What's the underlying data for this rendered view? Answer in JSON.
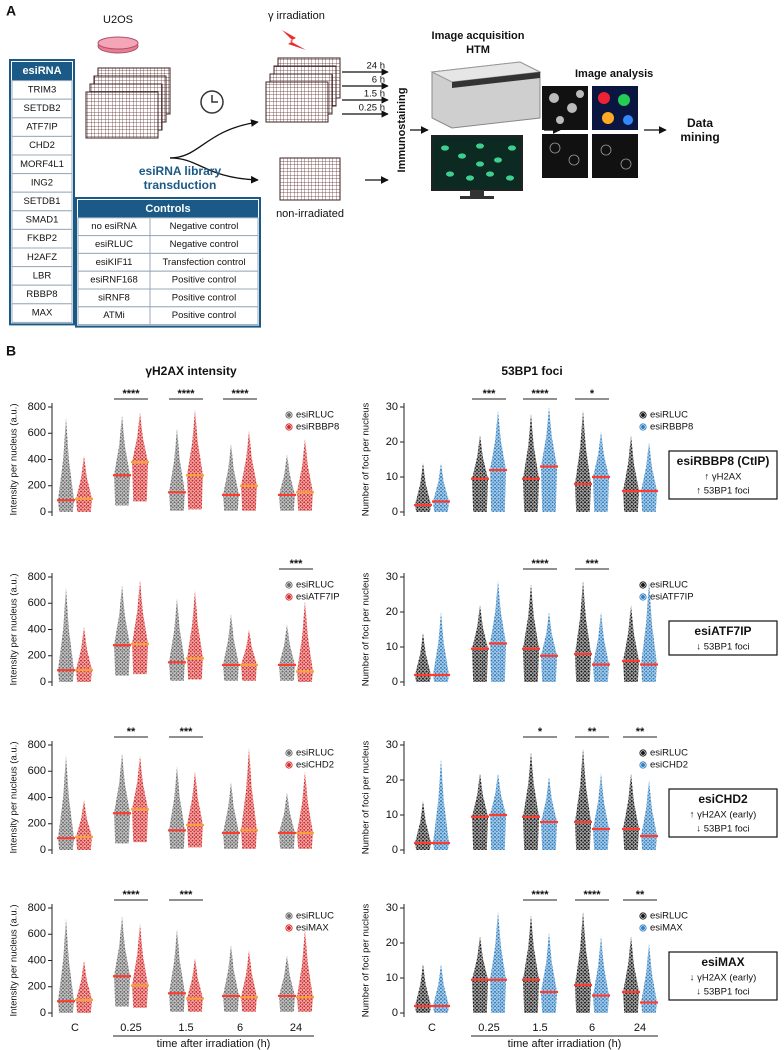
{
  "panel_a": {
    "label": "A",
    "cell_line": "U2OS",
    "esirna_table": {
      "header": "esiRNA",
      "rows": [
        "TRIM3",
        "SETDB2",
        "ATF7IP",
        "CHD2",
        "MORF4L1",
        "ING2",
        "SETDB1",
        "SMAD1",
        "FKBP2",
        "H2AFZ",
        "LBR",
        "RBBP8",
        "MAX"
      ]
    },
    "transduction": [
      "esiRNA library",
      "transduction"
    ],
    "controls_table": {
      "header": "Controls",
      "rows": [
        [
          "no esiRNA",
          "Negative control"
        ],
        [
          "esiRLUC",
          "Negative control"
        ],
        [
          "esiKIF11",
          "Transfection control"
        ],
        [
          "esiRNF168",
          "Positive control"
        ],
        [
          "siRNF8",
          "Positive control"
        ],
        [
          "ATMi",
          "Positive control"
        ]
      ]
    },
    "irradiation": "γ irradiation",
    "time_points": [
      "24 h",
      "6 h",
      "1.5 h",
      "0.25 h"
    ],
    "non_irradiated": "non-irradiated",
    "immunostaining": "Immunostaining",
    "image_acquisition": [
      "Image acquisition",
      "HTM"
    ],
    "image_analysis": "Image analysis",
    "data_mining": [
      "Data",
      "mining"
    ]
  },
  "panel_b": {
    "label": "B"
  },
  "summary_boxes": [
    {
      "title": "esiRBBP8 (CtIP)",
      "lines": [
        "↑ γH2AX",
        "↑ 53BP1 foci"
      ]
    },
    {
      "title": "esiATF7IP",
      "lines": [
        "↓ 53BP1 foci"
      ]
    },
    {
      "title": "esiCHD2",
      "lines": [
        "↑ γH2AX (early)",
        "↓ 53BP1 foci"
      ]
    },
    {
      "title": "esiMAX",
      "lines": [
        "↓ γH2AX (early)",
        "↓ 53BP1 foci"
      ]
    }
  ],
  "chart_data": [
    {
      "type": "swarm",
      "title": "γH2AX intensity",
      "y_label": "Intensity per nucleus (a.u.)",
      "ylim": [
        0,
        800
      ],
      "yticks": [
        0,
        200,
        400,
        600,
        800
      ],
      "categories": [
        null,
        null,
        null,
        null,
        null
      ],
      "significance": [
        null,
        "****",
        "****",
        "****",
        null
      ],
      "series": [
        {
          "name": "esiRLUC",
          "color": "#6a6a6a",
          "median_color": "#ff3b2f",
          "median": [
            90,
            280,
            150,
            130,
            130
          ],
          "min": [
            0,
            50,
            10,
            10,
            10
          ],
          "max": [
            720,
            740,
            640,
            520,
            440
          ]
        },
        {
          "name": "esiRBBP8",
          "color": "#d42a2a",
          "median_color": "#f7a13a",
          "median": [
            100,
            380,
            280,
            200,
            150
          ],
          "min": [
            0,
            80,
            20,
            10,
            10
          ],
          "max": [
            430,
            760,
            780,
            620,
            560
          ]
        }
      ]
    },
    {
      "type": "swarm",
      "title": "53BP1 foci",
      "y_label": "Number of foci per nucleus",
      "ylim": [
        0,
        30
      ],
      "yticks": [
        0,
        10,
        20,
        30
      ],
      "categories": [
        null,
        null,
        null,
        null,
        null
      ],
      "significance": [
        null,
        "***",
        "****",
        "*",
        null
      ],
      "series": [
        {
          "name": "esiRLUC",
          "color": "#1a1a1a",
          "median_color": "#ff3b2f",
          "median": [
            2,
            9.5,
            9.5,
            8,
            6
          ],
          "min": [
            0,
            0,
            0,
            0,
            0
          ],
          "max": [
            14,
            22,
            28,
            29,
            22
          ]
        },
        {
          "name": "esiRBBP8",
          "color": "#2f7fc1",
          "median_color": "#ff3b2f",
          "median": [
            3,
            12,
            13,
            10,
            6
          ],
          "min": [
            0,
            0,
            0,
            0,
            0
          ],
          "max": [
            14,
            29,
            30,
            23,
            20
          ]
        }
      ]
    },
    {
      "type": "swarm",
      "y_label": "Intensity per nucleus (a.u.)",
      "ylim": [
        0,
        800
      ],
      "yticks": [
        0,
        200,
        400,
        600,
        800
      ],
      "categories": [
        null,
        null,
        null,
        null,
        null
      ],
      "significance": [
        null,
        null,
        null,
        null,
        "***"
      ],
      "series": [
        {
          "name": "esiRLUC",
          "color": "#6a6a6a",
          "median_color": "#ff3b2f",
          "median": [
            90,
            280,
            150,
            130,
            130
          ],
          "min": [
            0,
            50,
            10,
            10,
            10
          ],
          "max": [
            720,
            740,
            640,
            520,
            440
          ]
        },
        {
          "name": "esiATF7IP",
          "color": "#d42a2a",
          "median_color": "#f7a13a",
          "median": [
            90,
            290,
            180,
            130,
            80
          ],
          "min": [
            0,
            60,
            20,
            10,
            0
          ],
          "max": [
            420,
            780,
            700,
            400,
            620
          ]
        }
      ]
    },
    {
      "type": "swarm",
      "y_label": "Number of foci per nucleus",
      "ylim": [
        0,
        30
      ],
      "yticks": [
        0,
        10,
        20,
        30
      ],
      "categories": [
        null,
        null,
        null,
        null,
        null
      ],
      "significance": [
        null,
        null,
        "****",
        "***",
        null
      ],
      "series": [
        {
          "name": "esiRLUC",
          "color": "#1a1a1a",
          "median_color": "#ff3b2f",
          "median": [
            2,
            9.5,
            9.5,
            8,
            6
          ],
          "min": [
            0,
            0,
            0,
            0,
            0
          ],
          "max": [
            14,
            22,
            28,
            29,
            22
          ]
        },
        {
          "name": "esiATF7IP",
          "color": "#2f7fc1",
          "median_color": "#ff3b2f",
          "median": [
            2,
            11,
            7.5,
            5,
            5
          ],
          "min": [
            0,
            0,
            0,
            0,
            0
          ],
          "max": [
            20,
            29,
            20,
            20,
            29
          ]
        }
      ]
    },
    {
      "type": "swarm",
      "y_label": "Intensity per nucleus (a.u.)",
      "ylim": [
        0,
        800
      ],
      "yticks": [
        0,
        200,
        400,
        600,
        800
      ],
      "categories": [
        null,
        null,
        null,
        null,
        null
      ],
      "significance": [
        null,
        "**",
        "***",
        null,
        null
      ],
      "series": [
        {
          "name": "esiRLUC",
          "color": "#6a6a6a",
          "median_color": "#ff3b2f",
          "median": [
            90,
            280,
            150,
            130,
            130
          ],
          "min": [
            0,
            50,
            10,
            10,
            10
          ],
          "max": [
            720,
            740,
            640,
            520,
            440
          ]
        },
        {
          "name": "esiCHD2",
          "color": "#d42a2a",
          "median_color": "#f7a13a",
          "median": [
            100,
            310,
            190,
            150,
            130
          ],
          "min": [
            0,
            60,
            20,
            10,
            10
          ],
          "max": [
            380,
            720,
            600,
            780,
            600
          ]
        }
      ]
    },
    {
      "type": "swarm",
      "y_label": "Number of foci per nucleus",
      "ylim": [
        0,
        30
      ],
      "yticks": [
        0,
        10,
        20,
        30
      ],
      "categories": [
        null,
        null,
        null,
        null,
        null
      ],
      "significance": [
        null,
        null,
        "*",
        "**",
        "**"
      ],
      "series": [
        {
          "name": "esiRLUC",
          "color": "#1a1a1a",
          "median_color": "#ff3b2f",
          "median": [
            2,
            9.5,
            9.5,
            8,
            6
          ],
          "min": [
            0,
            0,
            0,
            0,
            0
          ],
          "max": [
            14,
            22,
            28,
            29,
            22
          ]
        },
        {
          "name": "esiCHD2",
          "color": "#2f7fc1",
          "median_color": "#ff3b2f",
          "median": [
            2,
            10,
            8,
            6,
            4
          ],
          "min": [
            0,
            0,
            0,
            0,
            0
          ],
          "max": [
            26,
            22,
            21,
            22,
            20
          ]
        }
      ]
    },
    {
      "type": "swarm",
      "y_label": "Intensity per nucleus (a.u.)",
      "ylim": [
        0,
        800
      ],
      "yticks": [
        0,
        200,
        400,
        600,
        800
      ],
      "categories": [
        "C",
        "0.25",
        "1.5",
        "6",
        "24"
      ],
      "x_label": "time after irradiation (h)",
      "significance": [
        null,
        "****",
        "***",
        null,
        null
      ],
      "series": [
        {
          "name": "esiRLUC",
          "color": "#6a6a6a",
          "median_color": "#ff3b2f",
          "median": [
            90,
            280,
            150,
            130,
            130
          ],
          "min": [
            0,
            50,
            10,
            10,
            10
          ],
          "max": [
            720,
            740,
            640,
            520,
            440
          ]
        },
        {
          "name": "esiMAX",
          "color": "#d42a2a",
          "median_color": "#f7a13a",
          "median": [
            100,
            210,
            110,
            120,
            120
          ],
          "min": [
            0,
            40,
            10,
            10,
            10
          ],
          "max": [
            400,
            680,
            420,
            480,
            640
          ]
        }
      ]
    },
    {
      "type": "swarm",
      "y_label": "Number of foci per nucleus",
      "ylim": [
        0,
        30
      ],
      "yticks": [
        0,
        10,
        20,
        30
      ],
      "categories": [
        "C",
        "0.25",
        "1.5",
        "6",
        "24"
      ],
      "x_label": "time after irradiation (h)",
      "significance": [
        null,
        null,
        "****",
        "****",
        "**"
      ],
      "series": [
        {
          "name": "esiRLUC",
          "color": "#1a1a1a",
          "median_color": "#ff3b2f",
          "median": [
            2,
            9.5,
            9.5,
            8,
            6
          ],
          "min": [
            0,
            0,
            0,
            0,
            0
          ],
          "max": [
            14,
            22,
            28,
            29,
            22
          ]
        },
        {
          "name": "esiMAX",
          "color": "#2f7fc1",
          "median_color": "#ff3b2f",
          "median": [
            2,
            9.5,
            6,
            5,
            3
          ],
          "min": [
            0,
            0,
            0,
            0,
            0
          ],
          "max": [
            14,
            29,
            23,
            22,
            20
          ]
        }
      ]
    }
  ]
}
